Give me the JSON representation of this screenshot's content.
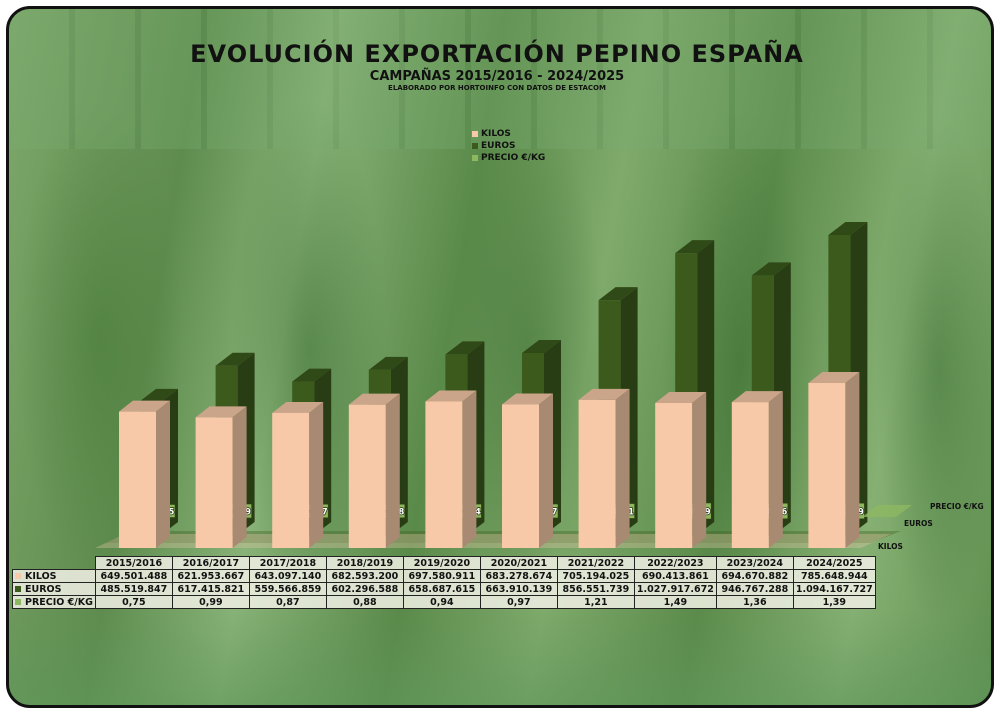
{
  "chart_data": {
    "type": "bar",
    "title": "EVOLUCIÓN EXPORTACIÓN PEPINO ESPAÑA",
    "subtitle": "CAMPAÑAS 2015/2016 - 2024/2025",
    "credit": "ELABORADO POR HORTOINFO CON DATOS DE ESTACOM",
    "categories": [
      "2015/2016",
      "2016/2017",
      "2017/2018",
      "2018/2019",
      "2019/2020",
      "2020/2021",
      "2021/2022",
      "2022/2023",
      "2023/2024",
      "2024/2025"
    ],
    "series": [
      {
        "name": "KILOS",
        "color": "#f7c9a8",
        "values": [
          649501488,
          621953667,
          643097140,
          682593200,
          697580911,
          683278674,
          705194025,
          690413861,
          694670882,
          785648944
        ],
        "labels": [
          "649.501.488",
          "621.953.667",
          "643.097.140",
          "682.593.200",
          "697.580.911",
          "683.278.674",
          "705.194.025",
          "690.413.861",
          "694.670.882",
          "785.648.944"
        ]
      },
      {
        "name": "EUROS",
        "color": "#3b5a1c",
        "values": [
          485519847,
          617415821,
          559566859,
          602296588,
          658687615,
          663910139,
          856551739,
          1027917672,
          946767288,
          1094167727
        ],
        "labels": [
          "485.519.847",
          "617.415.821",
          "559.566.859",
          "602.296.588",
          "658.687.615",
          "663.910.139",
          "856.551.739",
          "1.027.917.672",
          "946.767.288",
          "1.094.167.727"
        ]
      },
      {
        "name": "PRECIO €/KG",
        "color": "#8db860",
        "values": [
          0.75,
          0.99,
          0.87,
          0.88,
          0.94,
          0.97,
          1.21,
          1.49,
          1.36,
          1.39
        ],
        "labels": [
          "0,75",
          "0,99",
          "0,87",
          "0,88",
          "0,94",
          "0,97",
          "1,21",
          "1,49",
          "1,36",
          "1,39"
        ]
      }
    ],
    "axis_labels": {
      "precio": "PRECIO €/KG",
      "euros": "EUROS",
      "kilos": "KILOS"
    },
    "legend_position": "top-center",
    "grid": false
  }
}
